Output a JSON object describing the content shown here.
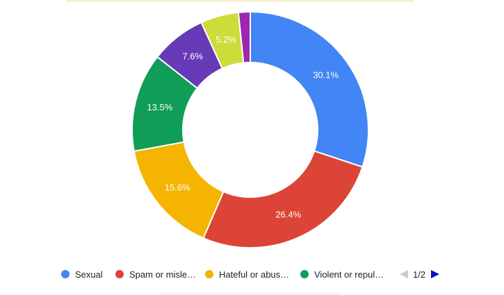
{
  "chart_data": {
    "type": "pie",
    "donut": true,
    "start_angle_deg": 0,
    "direction": "clockwise",
    "slices": [
      {
        "label": "Sexual",
        "value": 30.1,
        "display": "30.1%",
        "color": "#4285f4"
      },
      {
        "label": "Spam or misle…",
        "value": 26.4,
        "display": "26.4%",
        "color": "#db4437"
      },
      {
        "label": "Hateful or abus…",
        "value": 15.6,
        "display": "15.6%",
        "color": "#f4b400"
      },
      {
        "label": "Violent or repul…",
        "value": 13.5,
        "display": "13.5%",
        "color": "#0f9d58"
      },
      {
        "label": "",
        "value": 7.6,
        "display": "7.6%",
        "color": "#673ab7"
      },
      {
        "label": "",
        "value": 5.2,
        "display": "5.2%",
        "color": "#cddc39"
      },
      {
        "label": "",
        "value": 1.6,
        "display": "",
        "color": "#9c27b0"
      }
    ],
    "legend": {
      "placement": "bottom",
      "items": [
        {
          "label": "Sexual",
          "color": "#4285f4"
        },
        {
          "label": "Spam or misle…",
          "color": "#db4437"
        },
        {
          "label": "Hateful or abus…",
          "color": "#f4b400"
        },
        {
          "label": "Violent or repul…",
          "color": "#0f9d58"
        }
      ],
      "pager": {
        "text": "1/2",
        "prev_enabled": false,
        "next_enabled": true
      }
    }
  }
}
